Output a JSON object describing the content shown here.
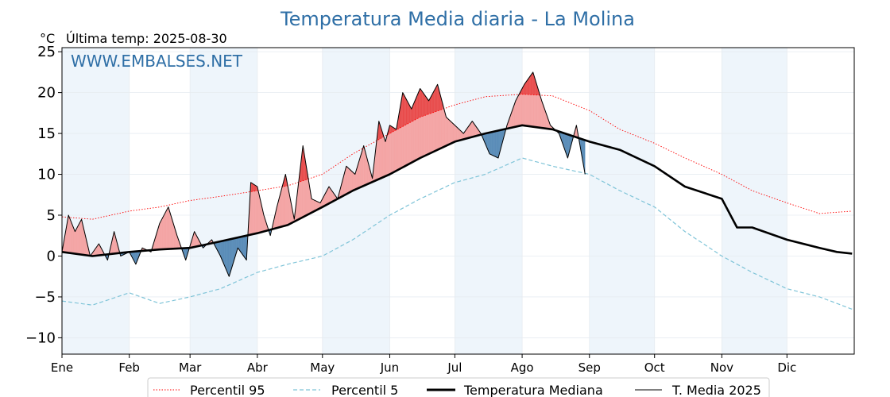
{
  "chart_data": {
    "type": "line",
    "title": "Temperatura Media diaria - La Molina",
    "unit_label": "°C",
    "last_temp_label": "Última temp: 2025-08-30",
    "watermark": "WWW.EMBALSES.NET",
    "ylim": [
      -12,
      25.5
    ],
    "yticks": [
      25,
      20,
      15,
      10,
      5,
      0,
      -5,
      -10
    ],
    "ytick_labels": [
      "25",
      "20",
      "15",
      "10",
      "5",
      "0",
      "−5",
      "−10"
    ],
    "months": [
      "Ene",
      "Feb",
      "Mar",
      "Abr",
      "May",
      "Jun",
      "Jul",
      "Ago",
      "Sep",
      "Oct",
      "Nov",
      "Dic"
    ],
    "month_start_doy": [
      1,
      32,
      60,
      91,
      121,
      152,
      182,
      213,
      244,
      274,
      305,
      335
    ],
    "days_in_year": 365,
    "grid": true,
    "legend_position": "bottom",
    "colors": {
      "p95": "#ff0000",
      "p5": "#7fc4d8",
      "median": "#000000",
      "mean2025": "#000000",
      "above_fill": "#f4a5a5",
      "above_p95_fill": "#e84a4a",
      "below_fill": "#5b8db8",
      "month_band": "#eef5fb",
      "title": "#2f6fa6"
    },
    "series": [
      {
        "name": "Percentil 95",
        "style": "dotted",
        "x": [
          1,
          15,
          32,
          46,
          60,
          74,
          91,
          105,
          121,
          135,
          152,
          166,
          182,
          196,
          213,
          227,
          244,
          258,
          274,
          288,
          305,
          319,
          335,
          350,
          365
        ],
        "values": [
          4.8,
          4.5,
          5.5,
          6.0,
          6.8,
          7.3,
          8.0,
          8.6,
          10.0,
          12.5,
          15.0,
          17.0,
          18.5,
          19.5,
          19.8,
          19.6,
          17.8,
          15.5,
          13.8,
          12.0,
          10.0,
          8.0,
          6.5,
          5.2,
          5.5
        ]
      },
      {
        "name": "Percentil 5",
        "style": "dashed",
        "x": [
          1,
          15,
          32,
          46,
          60,
          74,
          91,
          105,
          121,
          135,
          152,
          166,
          182,
          196,
          213,
          227,
          244,
          258,
          274,
          288,
          305,
          319,
          335,
          350,
          365
        ],
        "values": [
          -5.5,
          -6.0,
          -4.5,
          -5.8,
          -5.0,
          -4.0,
          -2.0,
          -1.0,
          0.0,
          2.0,
          5.0,
          7.0,
          9.0,
          10.0,
          12.0,
          11.0,
          10.0,
          8.0,
          6.0,
          3.0,
          0.0,
          -2.0,
          -4.0,
          -5.0,
          -6.5
        ]
      },
      {
        "name": "Temperatura Mediana",
        "style": "thick",
        "x": [
          1,
          15,
          32,
          46,
          60,
          74,
          91,
          105,
          121,
          135,
          152,
          166,
          182,
          196,
          213,
          227,
          244,
          258,
          274,
          288,
          305,
          312,
          319,
          335,
          350,
          358,
          365
        ],
        "values": [
          0.5,
          0.0,
          0.5,
          0.8,
          1.0,
          1.8,
          2.8,
          3.8,
          6.0,
          8.0,
          10.0,
          12.0,
          14.0,
          15.0,
          16.0,
          15.5,
          14.0,
          13.0,
          11.0,
          8.5,
          7.0,
          3.5,
          3.5,
          2.0,
          1.0,
          0.5,
          0.3
        ]
      },
      {
        "name": "T. Media 2025",
        "style": "thin",
        "x": [
          1,
          4,
          7,
          10,
          14,
          18,
          22,
          25,
          28,
          32,
          35,
          38,
          42,
          46,
          50,
          54,
          58,
          62,
          66,
          70,
          74,
          78,
          82,
          86,
          88,
          91,
          94,
          97,
          100,
          104,
          108,
          112,
          116,
          120,
          124,
          128,
          132,
          136,
          140,
          144,
          147,
          150,
          152,
          155,
          158,
          162,
          166,
          170,
          174,
          178,
          182,
          186,
          190,
          194,
          198,
          202,
          206,
          210,
          214,
          218,
          222,
          226,
          230,
          234,
          238,
          242
        ],
        "values": [
          0.5,
          5.0,
          3.0,
          4.5,
          0.0,
          1.5,
          -0.5,
          3.0,
          0.0,
          0.5,
          -1.0,
          1.0,
          0.5,
          4.0,
          6.0,
          2.5,
          -0.5,
          3.0,
          1.0,
          2.0,
          0.0,
          -2.5,
          1.0,
          -0.5,
          9.0,
          8.5,
          5.0,
          2.5,
          6.0,
          10.0,
          4.5,
          13.5,
          7.0,
          6.5,
          8.5,
          7.0,
          11.0,
          10.0,
          13.5,
          9.5,
          16.5,
          14.0,
          16.0,
          15.5,
          20.0,
          18.0,
          20.5,
          19.0,
          21.0,
          17.0,
          16.0,
          15.0,
          16.5,
          15.0,
          12.5,
          12.0,
          16.0,
          19.0,
          21.0,
          22.5,
          19.0,
          16.0,
          15.0,
          12.0,
          16.0,
          10.0
        ]
      }
    ],
    "legend": [
      "Percentil 95",
      "Percentil 5",
      "Temperatura Mediana",
      "T. Media 2025"
    ]
  }
}
